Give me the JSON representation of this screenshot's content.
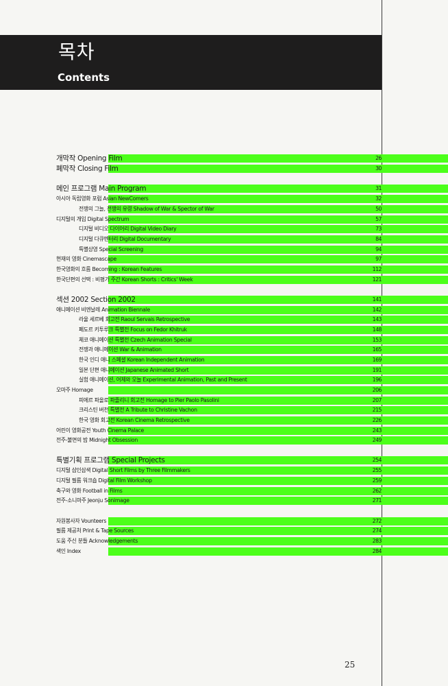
{
  "header": {
    "title_ko": "목차",
    "title_en": "Contents",
    "band_color": "#1e1d1d"
  },
  "accent_color": "#4cff1a",
  "folio": "25",
  "entries": [
    {
      "label": "개막작 Opening Film",
      "page": "26",
      "level": "section-sm"
    },
    {
      "label": "폐막작 Closing Film",
      "page": "30",
      "level": "section-sm"
    },
    {
      "label": "메인 프로그램 Main Program",
      "page": "31",
      "level": "section"
    },
    {
      "label": "아시아 독립영화 포럼 Asian NewComers",
      "page": "32",
      "level": "item"
    },
    {
      "label": "전쟁의 그늘, 전쟁의 유령 Shadow of War & Spector of War",
      "page": "50",
      "level": "sub"
    },
    {
      "label": "디지털의 개입 Digital Spectrum",
      "page": "57",
      "level": "item"
    },
    {
      "label": "디지털 비디오 다이어리 Digital Video Diary",
      "page": "73",
      "level": "sub"
    },
    {
      "label": "디지털 다큐멘터리 Digital Documentary",
      "page": "84",
      "level": "sub"
    },
    {
      "label": "특별상영 Special Screening",
      "page": "94",
      "level": "sub"
    },
    {
      "label": "현재의 영화 Cinemascape",
      "page": "97",
      "level": "item"
    },
    {
      "label": "한국영화의 흐름 Becoming : Korean Features",
      "page": "112",
      "level": "item"
    },
    {
      "label": "한국단편의 선택 : 비평가 주간 Korean Shorts : Critics' Week",
      "page": "121",
      "level": "item"
    },
    {
      "label": "섹션 2002 Section 2002",
      "page": "141",
      "level": "section"
    },
    {
      "label": "애니메이션 비엔날레 Animation Biennale",
      "page": "142",
      "level": "item"
    },
    {
      "label": "라울 세르베 회고전 Raoul Servais Retrospective",
      "page": "143",
      "level": "sub"
    },
    {
      "label": "페도르 키투루크 특별전 Focus on Fedor Khitruk",
      "page": "148",
      "level": "sub"
    },
    {
      "label": "체코 애니메이션 특별전 Czech Animation Special",
      "page": "153",
      "level": "sub"
    },
    {
      "label": "전쟁과 애니메이션 War & Animation",
      "page": "165",
      "level": "sub"
    },
    {
      "label": "한국 인디 애니 스페셜 Korean Independent Animation",
      "page": "169",
      "level": "sub"
    },
    {
      "label": "일본 단편 애니메이션 Japanese Animated Short",
      "page": "191",
      "level": "sub"
    },
    {
      "label": "실험 애니메이션, 어제와 오늘 Experimental Animation, Past and Present",
      "page": "196",
      "level": "sub"
    },
    {
      "label": "오마주 Homage",
      "page": "206",
      "level": "item"
    },
    {
      "label": "피에르 파올로 파졸리니 회고전 Homage to Pier Paolo Pasolini",
      "page": "207",
      "level": "sub"
    },
    {
      "label": "크리스틴 버천 특별전 A Tribute to Christine Vachon",
      "page": "215",
      "level": "sub"
    },
    {
      "label": "한국 영화 회고전 Korean Cinema Retrospective",
      "page": "226",
      "level": "sub"
    },
    {
      "label": "어린이 영화공전 Youth Cinema Palace",
      "page": "243",
      "level": "item"
    },
    {
      "label": "전주-불면의 밤 Midnight Obsession",
      "page": "249",
      "level": "item"
    },
    {
      "label": "특별기획 프로그램 Special Projects",
      "page": "254",
      "level": "section"
    },
    {
      "label": "디지털 삼인삼색 Digital Short Films by Three Filmmakers",
      "page": "255",
      "level": "item"
    },
    {
      "label": "디지털 필름 워크숍 Digital Film Workshop",
      "page": "259",
      "level": "item"
    },
    {
      "label": "축구와 영화 Football in Films",
      "page": "262",
      "level": "item"
    },
    {
      "label": "전주-소니마주 Jeonju Sonimage",
      "page": "271",
      "level": "item"
    },
    {
      "label": "자원봉사자 Vounteers",
      "page": "272",
      "level": "item"
    },
    {
      "label": "필름 제공처 Print & Tape Sources",
      "page": "274",
      "level": "item"
    },
    {
      "label": "도움 주신 분들 Acknowledgements",
      "page": "283",
      "level": "item"
    },
    {
      "label": "색인 Index",
      "page": "284",
      "level": "item"
    }
  ]
}
